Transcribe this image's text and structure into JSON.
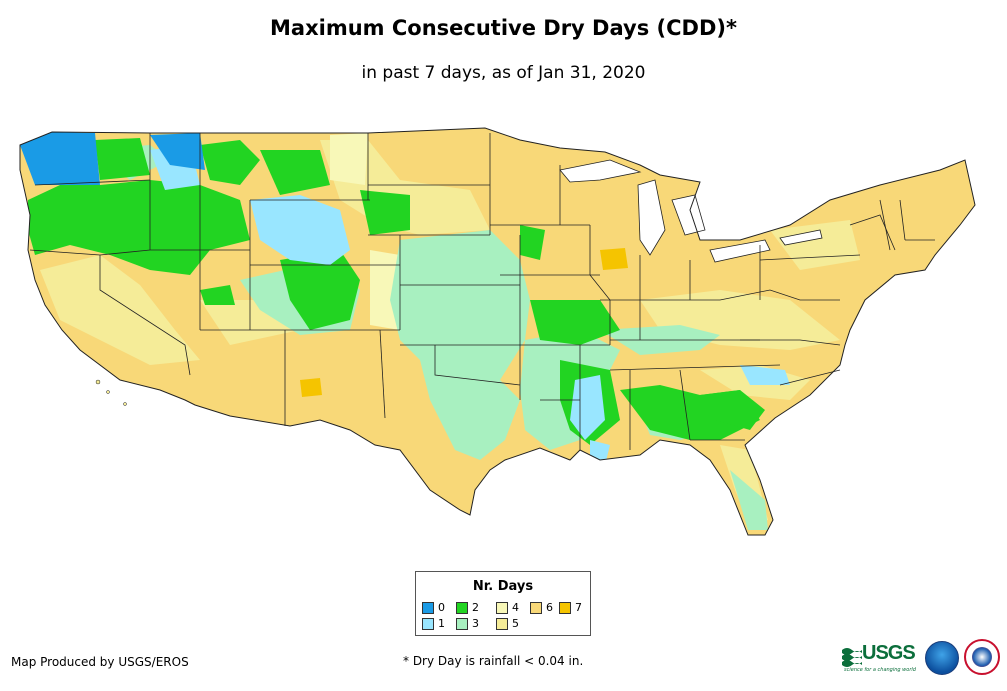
{
  "header": {
    "title": "Maximum Consecutive Dry Days (CDD)*",
    "subtitle": "in past 7 days, as of Jan 31, 2020"
  },
  "legend": {
    "title": "Nr. Days",
    "items": [
      {
        "label": "0",
        "color": "#1a9be6"
      },
      {
        "label": "1",
        "color": "#99e6ff"
      },
      {
        "label": "2",
        "color": "#22d422"
      },
      {
        "label": "3",
        "color": "#a8f0c0"
      },
      {
        "label": "4",
        "color": "#f8f8b8"
      },
      {
        "label": "5",
        "color": "#f5ec98"
      },
      {
        "label": "6",
        "color": "#f8d878"
      },
      {
        "label": "7",
        "color": "#f5c400"
      }
    ]
  },
  "footer": {
    "credit": "Map Produced by USGS/EROS",
    "footnote": "* Dry Day is rainfall < 0.04 in."
  },
  "logos": {
    "usgs": "USGS",
    "usgs_tagline": "science for a changing world"
  },
  "colors": {
    "land_base": "#f8d878",
    "state_border": "#222222",
    "water": "#ffffff"
  }
}
